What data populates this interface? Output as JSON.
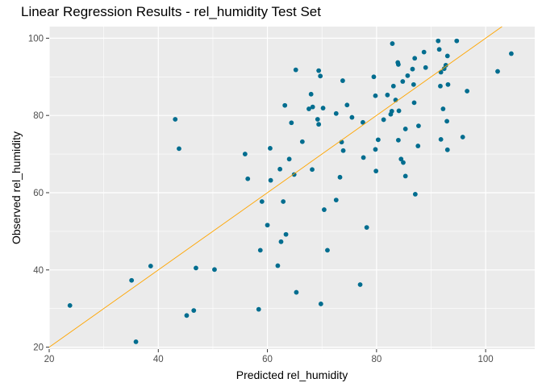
{
  "chart_data": {
    "type": "scatter",
    "title": "Linear Regression Results - rel_humidity Test Set",
    "xlabel": "Predicted rel_humidity",
    "ylabel": "Observed rel_humidity",
    "xlim": [
      20,
      109
    ],
    "ylim": [
      19.5,
      103
    ],
    "x_ticks": [
      20,
      40,
      60,
      80,
      100
    ],
    "y_ticks": [
      20,
      40,
      60,
      80,
      100
    ],
    "grid": true,
    "panel_background": "#ebebeb",
    "grid_color": "#ffffff",
    "point_color": "#006d8f",
    "line_color": "#ffa500",
    "reference_line": {
      "slope": 1,
      "intercept": 0
    },
    "points": [
      {
        "x": 23.8,
        "y": 30.8
      },
      {
        "x": 35.1,
        "y": 37.3
      },
      {
        "x": 35.9,
        "y": 21.4
      },
      {
        "x": 38.6,
        "y": 41.0
      },
      {
        "x": 43.1,
        "y": 79.0
      },
      {
        "x": 43.8,
        "y": 71.4
      },
      {
        "x": 45.2,
        "y": 28.2
      },
      {
        "x": 46.5,
        "y": 29.5
      },
      {
        "x": 46.9,
        "y": 40.5
      },
      {
        "x": 50.3,
        "y": 40.1
      },
      {
        "x": 55.9,
        "y": 70.0
      },
      {
        "x": 56.4,
        "y": 63.6
      },
      {
        "x": 58.4,
        "y": 29.8
      },
      {
        "x": 58.7,
        "y": 45.1
      },
      {
        "x": 59.0,
        "y": 57.7
      },
      {
        "x": 60.0,
        "y": 51.6
      },
      {
        "x": 60.5,
        "y": 71.5
      },
      {
        "x": 60.6,
        "y": 63.2
      },
      {
        "x": 61.9,
        "y": 41.1
      },
      {
        "x": 62.3,
        "y": 66.1
      },
      {
        "x": 62.5,
        "y": 47.3
      },
      {
        "x": 62.9,
        "y": 57.7
      },
      {
        "x": 63.2,
        "y": 82.6
      },
      {
        "x": 63.4,
        "y": 49.2
      },
      {
        "x": 64.0,
        "y": 68.7
      },
      {
        "x": 64.4,
        "y": 78.1
      },
      {
        "x": 64.9,
        "y": 64.7
      },
      {
        "x": 65.2,
        "y": 91.8
      },
      {
        "x": 65.3,
        "y": 34.2
      },
      {
        "x": 66.4,
        "y": 73.2
      },
      {
        "x": 67.6,
        "y": 81.7
      },
      {
        "x": 68.0,
        "y": 85.5
      },
      {
        "x": 68.2,
        "y": 66.0
      },
      {
        "x": 68.3,
        "y": 82.2
      },
      {
        "x": 69.2,
        "y": 79.0
      },
      {
        "x": 69.4,
        "y": 77.7
      },
      {
        "x": 69.4,
        "y": 91.6
      },
      {
        "x": 69.7,
        "y": 90.2
      },
      {
        "x": 69.8,
        "y": 31.2
      },
      {
        "x": 70.2,
        "y": 81.9
      },
      {
        "x": 70.4,
        "y": 55.6
      },
      {
        "x": 71.0,
        "y": 45.1
      },
      {
        "x": 72.6,
        "y": 80.5
      },
      {
        "x": 72.6,
        "y": 58.1
      },
      {
        "x": 73.3,
        "y": 64.0
      },
      {
        "x": 73.6,
        "y": 73.1
      },
      {
        "x": 73.8,
        "y": 89.0
      },
      {
        "x": 73.9,
        "y": 70.9
      },
      {
        "x": 74.6,
        "y": 82.7
      },
      {
        "x": 75.5,
        "y": 79.5
      },
      {
        "x": 77.0,
        "y": 36.2
      },
      {
        "x": 77.5,
        "y": 78.2
      },
      {
        "x": 77.6,
        "y": 69.1
      },
      {
        "x": 78.2,
        "y": 51.0
      },
      {
        "x": 79.5,
        "y": 90.0
      },
      {
        "x": 79.8,
        "y": 71.2
      },
      {
        "x": 79.8,
        "y": 85.1
      },
      {
        "x": 79.9,
        "y": 65.6
      },
      {
        "x": 80.3,
        "y": 73.7
      },
      {
        "x": 81.3,
        "y": 78.9
      },
      {
        "x": 82.0,
        "y": 85.3
      },
      {
        "x": 82.6,
        "y": 80.3
      },
      {
        "x": 82.8,
        "y": 81.1
      },
      {
        "x": 82.9,
        "y": 98.6
      },
      {
        "x": 83.1,
        "y": 87.6
      },
      {
        "x": 83.5,
        "y": 84.0
      },
      {
        "x": 83.9,
        "y": 93.7
      },
      {
        "x": 84.0,
        "y": 73.6
      },
      {
        "x": 84.0,
        "y": 93.2
      },
      {
        "x": 84.1,
        "y": 81.2
      },
      {
        "x": 84.5,
        "y": 68.7
      },
      {
        "x": 84.8,
        "y": 88.8
      },
      {
        "x": 84.9,
        "y": 67.8
      },
      {
        "x": 85.3,
        "y": 64.3
      },
      {
        "x": 85.3,
        "y": 76.5
      },
      {
        "x": 85.7,
        "y": 90.3
      },
      {
        "x": 86.6,
        "y": 92.0
      },
      {
        "x": 86.8,
        "y": 88.0
      },
      {
        "x": 86.9,
        "y": 83.3
      },
      {
        "x": 87.0,
        "y": 94.8
      },
      {
        "x": 87.1,
        "y": 59.6
      },
      {
        "x": 87.6,
        "y": 72.1
      },
      {
        "x": 87.7,
        "y": 77.3
      },
      {
        "x": 88.7,
        "y": 96.4
      },
      {
        "x": 89.0,
        "y": 92.4
      },
      {
        "x": 91.3,
        "y": 99.3
      },
      {
        "x": 91.5,
        "y": 97.1
      },
      {
        "x": 91.7,
        "y": 87.6
      },
      {
        "x": 91.8,
        "y": 73.8
      },
      {
        "x": 91.8,
        "y": 91.2
      },
      {
        "x": 92.2,
        "y": 81.7
      },
      {
        "x": 92.4,
        "y": 92.1
      },
      {
        "x": 92.7,
        "y": 93.0
      },
      {
        "x": 92.9,
        "y": 78.5
      },
      {
        "x": 93.0,
        "y": 71.1
      },
      {
        "x": 93.0,
        "y": 95.4
      },
      {
        "x": 93.1,
        "y": 88.0
      },
      {
        "x": 94.7,
        "y": 99.3
      },
      {
        "x": 95.8,
        "y": 74.4
      },
      {
        "x": 96.6,
        "y": 86.3
      },
      {
        "x": 102.2,
        "y": 91.4
      },
      {
        "x": 104.7,
        "y": 96.0
      }
    ]
  }
}
